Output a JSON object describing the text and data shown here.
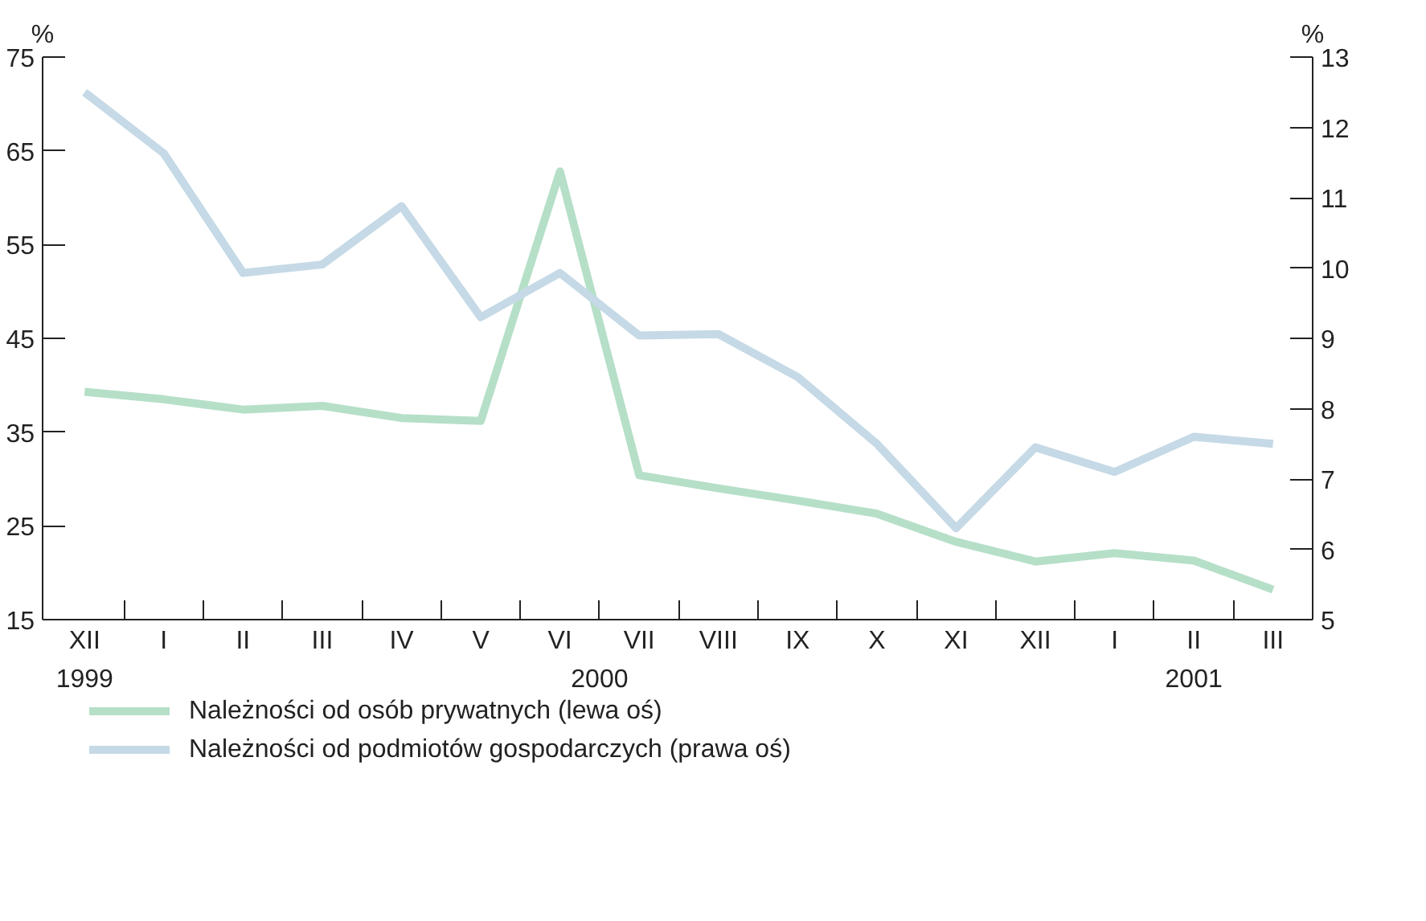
{
  "chart_data": {
    "type": "line",
    "ylabel": "%",
    "y2label": "%",
    "categories": [
      "XII",
      "I",
      "II",
      "III",
      "IV",
      "V",
      "VI",
      "VII",
      "VIII",
      "IX",
      "X",
      "XI",
      "XII",
      "I",
      "II",
      "III"
    ],
    "series": [
      {
        "name": "Należności od osób prywatnych (lewa oś)",
        "color": "#b6dfc8",
        "values": [
          39.3,
          38.5,
          37.4,
          37.8,
          36.5,
          36.2,
          62.8,
          30.4,
          29.0,
          27.7,
          26.3,
          23.3,
          21.2,
          22.1,
          21.3,
          18.2
        ]
      },
      {
        "name": "Należności od podmiotów gospodarczych (prawa oś)",
        "color": "#c5d9e6",
        "axis": "y2",
        "values": [
          12.5,
          11.63,
          9.93,
          10.05,
          10.88,
          9.3,
          9.93,
          9.04,
          9.06,
          8.45,
          7.5,
          6.3,
          7.45,
          7.1,
          7.6,
          7.5
        ]
      }
    ],
    "ylim": [
      15,
      75
    ],
    "yticks": [
      15,
      25,
      35,
      45,
      55,
      65,
      75
    ],
    "y2lim": [
      5,
      13
    ],
    "y2ticks": [
      5,
      6,
      7,
      8,
      9,
      10,
      11,
      12,
      13
    ],
    "annotations": [
      "1999",
      "2000",
      "2001"
    ],
    "grid": false,
    "legend": "bottom",
    "marker": "none",
    "line_style": "solid"
  }
}
